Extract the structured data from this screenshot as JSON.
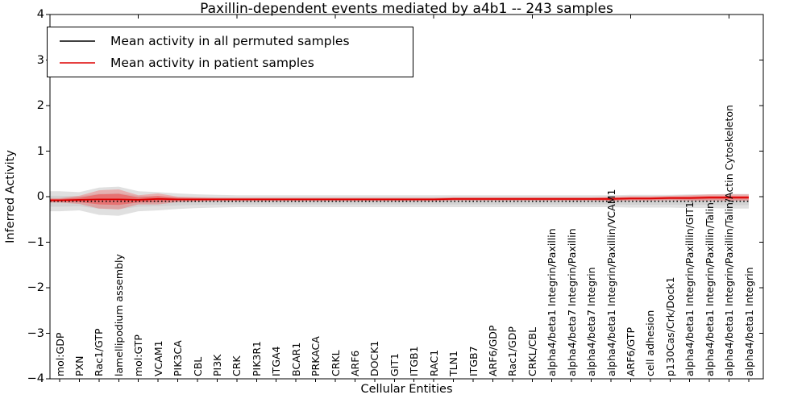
{
  "chart_data": {
    "type": "line",
    "title": "Paxillin-dependent events mediated by a4b1 -- 243 samples",
    "xlabel": "Cellular Entities",
    "ylabel": "Inferred Activity",
    "ylim": [
      -4,
      4
    ],
    "yticks": [
      4,
      3,
      2,
      1,
      0,
      -1,
      -2,
      -3,
      -4
    ],
    "grid": false,
    "legend_position": "upper left",
    "categories": [
      "mol:GDP",
      "PXN",
      "Rac1/GTP",
      "lamellipodium assembly",
      "mol:GTP",
      "VCAM1",
      "PIK3CA",
      "CBL",
      "PI3K",
      "CRK",
      "PIK3R1",
      "ITGA4",
      "BCAR1",
      "PRKACA",
      "CRKL",
      "ARF6",
      "DOCK1",
      "GIT1",
      "ITGB1",
      "RAC1",
      "TLN1",
      "ITGB7",
      "ARF6/GDP",
      "Rac1/GDP",
      "CRKL/CBL",
      "alpha4/beta1 Integrin/Paxillin",
      "alpha4/beta7 Integrin/Paxillin",
      "alpha4/beta7 Integrin",
      "alpha4/beta1 Integrin/Paxillin/VCAM1",
      "ARF6/GTP",
      "cell adhesion",
      "p130Cas/Crk/Dock1",
      "alpha4/beta1 Integrin/Paxillin/GIT1",
      "alpha4/beta1 Integrin/Paxillin/Talin",
      "alpha4/beta1 Integrin/Paxillin/Talin/Actin Cytoskeleton",
      "alpha4/beta1 Integrin"
    ],
    "series": [
      {
        "name": "Mean activity in all permuted samples",
        "color": "#000000",
        "line_style": "dotted",
        "values": [
          -0.1,
          -0.1,
          -0.1,
          -0.1,
          -0.1,
          -0.1,
          -0.1,
          -0.1,
          -0.1,
          -0.1,
          -0.1,
          -0.1,
          -0.1,
          -0.1,
          -0.1,
          -0.1,
          -0.1,
          -0.1,
          -0.1,
          -0.1,
          -0.1,
          -0.1,
          -0.1,
          -0.1,
          -0.1,
          -0.1,
          -0.1,
          -0.1,
          -0.1,
          -0.1,
          -0.1,
          -0.1,
          -0.1,
          -0.1,
          -0.1,
          -0.1
        ],
        "band_halfwidth": [
          0.22,
          0.2,
          0.3,
          0.32,
          0.22,
          0.2,
          0.17,
          0.15,
          0.14,
          0.13,
          0.13,
          0.13,
          0.13,
          0.13,
          0.13,
          0.13,
          0.13,
          0.13,
          0.13,
          0.13,
          0.13,
          0.13,
          0.13,
          0.13,
          0.13,
          0.13,
          0.13,
          0.13,
          0.13,
          0.14,
          0.14,
          0.14,
          0.15,
          0.15,
          0.16,
          0.16
        ],
        "band_color": "rgba(0,0,0,0.12)",
        "band_core_color": "rgba(0,0,0,0.06)"
      },
      {
        "name": "Mean activity in patient samples",
        "color": "#dd0000",
        "line_style": "solid",
        "values": [
          -0.08,
          -0.07,
          -0.06,
          -0.06,
          -0.07,
          -0.05,
          -0.06,
          -0.06,
          -0.06,
          -0.06,
          -0.06,
          -0.06,
          -0.06,
          -0.06,
          -0.06,
          -0.06,
          -0.06,
          -0.06,
          -0.06,
          -0.06,
          -0.05,
          -0.05,
          -0.05,
          -0.05,
          -0.05,
          -0.05,
          -0.05,
          -0.05,
          -0.05,
          -0.04,
          -0.04,
          -0.03,
          -0.03,
          -0.02,
          -0.02,
          -0.02
        ],
        "band_halfwidth": [
          0.05,
          0.09,
          0.2,
          0.22,
          0.1,
          0.12,
          0.06,
          0.05,
          0.04,
          0.04,
          0.04,
          0.04,
          0.04,
          0.04,
          0.04,
          0.04,
          0.04,
          0.04,
          0.04,
          0.04,
          0.04,
          0.04,
          0.04,
          0.04,
          0.04,
          0.04,
          0.04,
          0.04,
          0.05,
          0.05,
          0.05,
          0.05,
          0.06,
          0.07,
          0.07,
          0.07
        ],
        "band_color": "rgba(255,0,0,0.22)",
        "band_core_color": "rgba(255,0,0,0.30)"
      }
    ]
  }
}
